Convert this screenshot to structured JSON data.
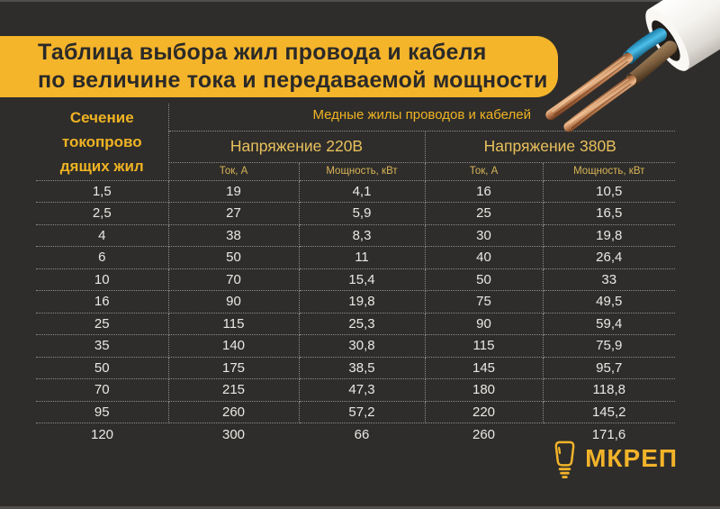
{
  "header": {
    "title_line1": "Таблица выбора жил провода и кабеля",
    "title_line2": "по величине тока и передаваемой мощности"
  },
  "chart_data": {
    "type": "table",
    "title": "Таблица выбора жил провода и кабеля по величине тока и передаваемой мощности",
    "row_header": "Сечение токопроводящих жил",
    "row_header_lines": [
      "Сечение",
      "токопрово",
      "дящих жил"
    ],
    "group_header": "Медные жилы проводов и кабелей",
    "voltage_groups": [
      "Напряжение 220В",
      "Напряжение 380В"
    ],
    "columns": [
      "Ток, А",
      "Мощность, кВт",
      "Ток, А",
      "Мощность, кВт"
    ],
    "rows": [
      [
        "1,5",
        "19",
        "4,1",
        "16",
        "10,5"
      ],
      [
        "2,5",
        "27",
        "5,9",
        "25",
        "16,5"
      ],
      [
        "4",
        "38",
        "8,3",
        "30",
        "19,8"
      ],
      [
        "6",
        "50",
        "11",
        "40",
        "26,4"
      ],
      [
        "10",
        "70",
        "15,4",
        "50",
        "33"
      ],
      [
        "16",
        "90",
        "19,8",
        "75",
        "49,5"
      ],
      [
        "25",
        "115",
        "25,3",
        "90",
        "59,4"
      ],
      [
        "35",
        "140",
        "30,8",
        "115",
        "75,9"
      ],
      [
        "50",
        "175",
        "38,5",
        "145",
        "95,7"
      ],
      [
        "70",
        "215",
        "47,3",
        "180",
        "118,8"
      ],
      [
        "95",
        "260",
        "57,2",
        "220",
        "145,2"
      ],
      [
        "120",
        "300",
        "66",
        "260",
        "171,6"
      ]
    ]
  },
  "logo": {
    "text": "МКРЕП",
    "icon": "lightbulb-dowel-icon"
  },
  "illustration": {
    "icon": "cable-photo"
  },
  "colors": {
    "background": "#2e2d2b",
    "banner_yellow": "#f5b52b",
    "accent_yellow": "#f0b323",
    "value_text": "#eae8e5",
    "grid_dots": "#8e8c89"
  }
}
